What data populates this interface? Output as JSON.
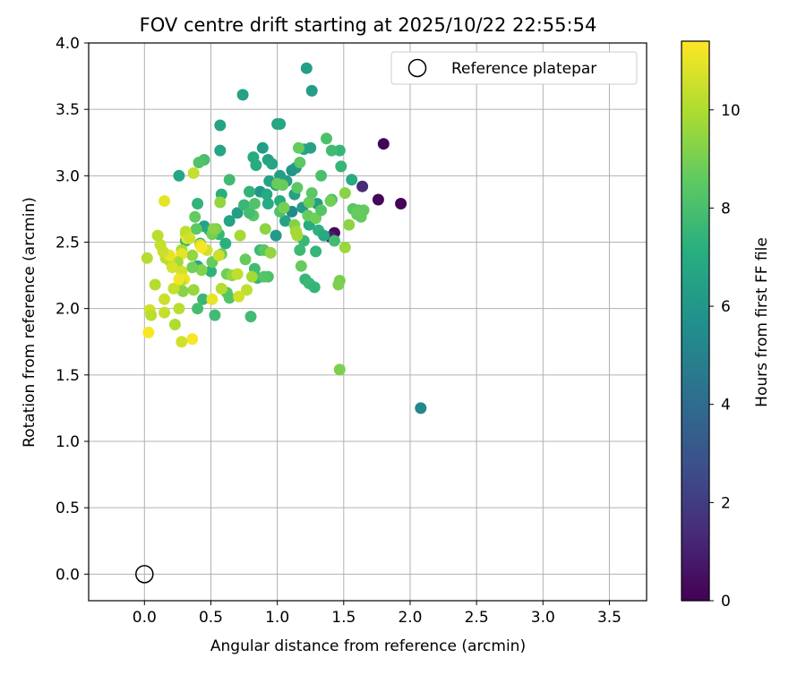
{
  "chart_data": {
    "type": "scatter",
    "title": "FOV centre drift starting at 2025/10/22 22:55:54",
    "xlabel": "Angular distance from reference (arcmin)",
    "ylabel": "Rotation from reference (arcmin)",
    "xlim": [
      -0.42,
      3.78
    ],
    "ylim": [
      -0.2,
      4.0
    ],
    "xticks": [
      "0.0",
      "0.5",
      "1.0",
      "1.5",
      "2.0",
      "2.5",
      "3.0",
      "3.5"
    ],
    "yticks": [
      "0.0",
      "0.5",
      "1.0",
      "1.5",
      "2.0",
      "2.5",
      "3.0",
      "3.5",
      "4.0"
    ],
    "grid": true,
    "legend": {
      "placement": "top-right",
      "entries": [
        "Reference platepar"
      ]
    },
    "colorbar": {
      "label": "Hours from first FF file",
      "range": [
        0,
        11.4
      ],
      "ticks": [
        "0",
        "2",
        "4",
        "6",
        "8",
        "10"
      ],
      "colormap": "viridis"
    },
    "reference_point": {
      "x": 0.0,
      "y": 0.0,
      "label": "Reference platepar"
    },
    "series": [
      {
        "points": [
          [
            1.8,
            3.24,
            0.1
          ],
          [
            1.93,
            2.79,
            0.1
          ],
          [
            1.76,
            2.82,
            0.2
          ],
          [
            1.64,
            2.92,
            1.4
          ],
          [
            1.43,
            2.57,
            0.3
          ],
          [
            1.4,
            2.54,
            1.0
          ],
          [
            2.08,
            1.25,
            5.3
          ],
          [
            1.22,
            3.81,
            6.4
          ],
          [
            1.26,
            3.64,
            6.3
          ],
          [
            0.74,
            3.61,
            6.5
          ],
          [
            1.0,
            3.39,
            6.6
          ],
          [
            1.02,
            3.39,
            6.8
          ],
          [
            0.57,
            3.38,
            6.6
          ],
          [
            1.2,
            3.2,
            6.8
          ],
          [
            1.25,
            3.21,
            6.6
          ],
          [
            0.89,
            3.21,
            6.3
          ],
          [
            0.57,
            3.19,
            6.7
          ],
          [
            0.82,
            3.14,
            6.9
          ],
          [
            0.93,
            3.12,
            6.5
          ],
          [
            0.96,
            3.09,
            6.7
          ],
          [
            0.84,
            3.08,
            7.0
          ],
          [
            1.11,
            3.04,
            5.9
          ],
          [
            1.14,
            3.06,
            6.1
          ],
          [
            1.02,
            3.0,
            6.4
          ],
          [
            1.07,
            2.96,
            6.4
          ],
          [
            0.94,
            2.96,
            6.6
          ],
          [
            0.99,
            2.93,
            6.8
          ],
          [
            0.87,
            2.88,
            6.0
          ],
          [
            0.92,
            2.86,
            6.9
          ],
          [
            0.79,
            2.88,
            7.4
          ],
          [
            1.11,
            2.73,
            5.4
          ],
          [
            1.19,
            2.76,
            6.3
          ],
          [
            1.3,
            2.79,
            6.4
          ],
          [
            1.13,
            2.86,
            6.5
          ],
          [
            1.02,
            2.81,
            7.0
          ],
          [
            0.93,
            2.79,
            7.0
          ],
          [
            0.7,
            2.72,
            6.4
          ],
          [
            0.64,
            2.66,
            6.6
          ],
          [
            0.75,
            2.78,
            7.6
          ],
          [
            0.58,
            2.86,
            7.2
          ],
          [
            0.45,
            2.62,
            6.5
          ],
          [
            0.49,
            2.59,
            7.0
          ],
          [
            0.56,
            2.56,
            7.5
          ],
          [
            0.42,
            2.49,
            7.3
          ],
          [
            0.31,
            2.51,
            7.5
          ],
          [
            0.61,
            2.49,
            7.2
          ],
          [
            0.4,
            2.32,
            6.8
          ],
          [
            0.5,
            2.28,
            7.3
          ],
          [
            1.06,
            2.66,
            6.6
          ],
          [
            0.99,
            2.55,
            6.2
          ],
          [
            1.14,
            2.58,
            6.9
          ],
          [
            1.24,
            2.63,
            7.0
          ],
          [
            1.31,
            2.59,
            7.3
          ],
          [
            1.35,
            2.55,
            6.9
          ],
          [
            1.2,
            2.51,
            7.6
          ],
          [
            1.17,
            2.44,
            7.7
          ],
          [
            1.29,
            2.43,
            7.5
          ],
          [
            1.43,
            2.51,
            7.8
          ],
          [
            1.41,
            2.82,
            7.8
          ],
          [
            1.48,
            3.07,
            7.5
          ],
          [
            1.47,
            3.19,
            7.5
          ],
          [
            1.41,
            3.19,
            7.8
          ],
          [
            1.37,
            3.28,
            8.1
          ],
          [
            1.33,
            3.0,
            8.0
          ],
          [
            1.56,
            2.97,
            7.0
          ],
          [
            1.61,
            2.74,
            8.5
          ],
          [
            1.65,
            2.74,
            8.6
          ],
          [
            1.63,
            2.69,
            8.7
          ],
          [
            1.57,
            2.75,
            8.4
          ],
          [
            1.54,
            2.63,
            9.4
          ],
          [
            1.51,
            2.46,
            9.6
          ],
          [
            1.47,
            2.21,
            9.0
          ],
          [
            1.46,
            2.18,
            9.1
          ],
          [
            1.47,
            1.54,
            9.1
          ],
          [
            1.21,
            2.22,
            7.5
          ],
          [
            1.24,
            2.19,
            7.6
          ],
          [
            1.28,
            2.16,
            7.5
          ],
          [
            1.18,
            2.32,
            8.7
          ],
          [
            0.85,
            2.23,
            7.5
          ],
          [
            0.83,
            2.3,
            7.8
          ],
          [
            0.87,
            2.44,
            7.7
          ],
          [
            0.8,
            1.94,
            7.8
          ],
          [
            0.53,
            1.95,
            7.8
          ],
          [
            0.44,
            2.07,
            7.6
          ],
          [
            0.4,
            2.0,
            7.9
          ],
          [
            0.62,
            2.12,
            8.4
          ],
          [
            0.64,
            2.08,
            8.3
          ],
          [
            0.26,
            3.0,
            6.8
          ],
          [
            0.45,
            3.12,
            8.0
          ],
          [
            0.41,
            3.1,
            8.2
          ],
          [
            0.64,
            2.97,
            7.8
          ],
          [
            0.4,
            2.79,
            7.4
          ],
          [
            0.38,
            2.69,
            8.6
          ],
          [
            0.39,
            2.6,
            8.5
          ],
          [
            0.57,
            2.8,
            9.5
          ],
          [
            0.82,
            2.7,
            8.4
          ],
          [
            0.79,
            2.72,
            7.9
          ],
          [
            0.83,
            2.79,
            8.2
          ],
          [
            0.93,
            2.24,
            8.1
          ],
          [
            0.9,
            2.24,
            8.3
          ],
          [
            0.9,
            2.44,
            8.4
          ],
          [
            0.95,
            2.42,
            9.5
          ],
          [
            0.91,
            2.6,
            9.4
          ],
          [
            1.02,
            2.73,
            8.2
          ],
          [
            1.05,
            2.76,
            9.0
          ],
          [
            1.04,
            2.93,
            8.7
          ],
          [
            1.0,
            2.94,
            8.8
          ],
          [
            1.15,
            2.91,
            8.5
          ],
          [
            1.16,
            3.21,
            8.7
          ],
          [
            1.17,
            3.1,
            8.5
          ],
          [
            1.13,
            2.63,
            9.2
          ],
          [
            1.14,
            2.58,
            9.8
          ],
          [
            1.15,
            2.55,
            9.8
          ],
          [
            1.23,
            2.7,
            8.7
          ],
          [
            1.24,
            2.8,
            8.8
          ],
          [
            1.29,
            2.68,
            8.9
          ],
          [
            1.26,
            2.87,
            8.5
          ],
          [
            1.33,
            2.74,
            8.3
          ],
          [
            1.4,
            2.81,
            8.9
          ],
          [
            1.51,
            2.87,
            9.3
          ],
          [
            1.6,
            2.72,
            8.8
          ],
          [
            1.6,
            2.71,
            8.7
          ],
          [
            0.62,
            2.26,
            8.9
          ],
          [
            0.66,
            2.25,
            9.5
          ],
          [
            0.7,
            2.26,
            10.3
          ],
          [
            0.77,
            2.14,
            10.3
          ],
          [
            0.76,
            2.37,
            8.7
          ],
          [
            0.72,
            2.55,
            9.8
          ],
          [
            0.81,
            2.24,
            9.8
          ],
          [
            0.51,
            2.56,
            8.9
          ],
          [
            0.54,
            2.6,
            9.0
          ],
          [
            0.58,
            2.41,
            8.8
          ],
          [
            0.51,
            2.35,
            8.7
          ],
          [
            0.42,
            2.48,
            10.8
          ],
          [
            0.47,
            2.44,
            10.6
          ],
          [
            0.43,
            2.46,
            11.3
          ],
          [
            0.56,
            2.4,
            10.5
          ],
          [
            0.58,
            2.15,
            10.1
          ],
          [
            0.51,
            2.07,
            11.0
          ],
          [
            0.43,
            2.29,
            9.2
          ],
          [
            0.36,
            2.4,
            9.5
          ],
          [
            0.36,
            2.31,
            8.9
          ],
          [
            0.37,
            2.14,
            9.6
          ],
          [
            0.37,
            3.02,
            10.4
          ],
          [
            0.31,
            2.56,
            10.7
          ],
          [
            0.32,
            2.53,
            11.1
          ],
          [
            0.31,
            2.58,
            10.3
          ],
          [
            0.28,
            2.44,
            9.9
          ],
          [
            0.28,
            2.41,
            11.0
          ],
          [
            0.25,
            2.35,
            9.8
          ],
          [
            0.28,
            2.28,
            10.6
          ],
          [
            0.3,
            2.22,
            11.0
          ],
          [
            0.27,
            2.2,
            10.1
          ],
          [
            0.19,
            2.36,
            10.3
          ],
          [
            0.21,
            2.31,
            10.7
          ],
          [
            0.16,
            2.38,
            10.2
          ],
          [
            0.19,
            2.4,
            11.0
          ],
          [
            0.14,
            2.43,
            10.5
          ],
          [
            0.12,
            2.48,
            10.4
          ],
          [
            0.1,
            2.55,
            10.2
          ],
          [
            0.15,
            2.81,
            11.0
          ],
          [
            0.34,
            2.53,
            10.6
          ],
          [
            0.29,
            2.13,
            9.3
          ],
          [
            0.36,
            1.77,
            11.3
          ],
          [
            0.28,
            1.75,
            10.6
          ],
          [
            0.23,
            1.88,
            10.0
          ],
          [
            0.26,
            2.0,
            10.2
          ],
          [
            0.15,
            2.07,
            10.5
          ],
          [
            0.08,
            2.18,
            10.1
          ],
          [
            0.15,
            1.97,
            10.4
          ],
          [
            0.22,
            2.15,
            10.4
          ],
          [
            0.26,
            2.22,
            11.2
          ],
          [
            0.04,
            1.99,
            10.6
          ],
          [
            0.05,
            1.95,
            10.2
          ],
          [
            0.03,
            1.82,
            11.3
          ],
          [
            0.02,
            2.38,
            10.1
          ],
          [
            0.71,
            2.09,
            10.6
          ],
          [
            0.52,
            2.6,
            9.3
          ]
        ]
      }
    ]
  }
}
